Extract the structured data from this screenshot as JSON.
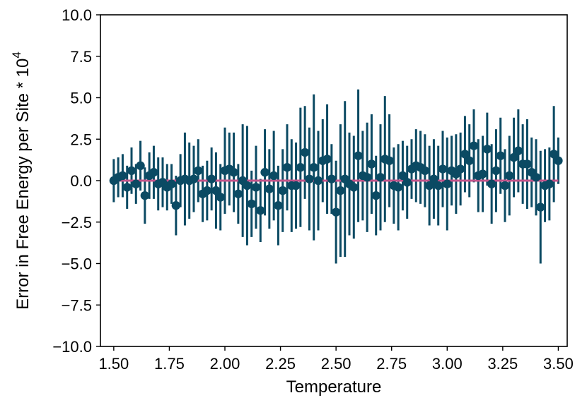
{
  "chart_data": {
    "type": "scatter",
    "xlabel": "Temperature",
    "ylabel_main": "Error in Free Energy per Site * 10",
    "ylabel_exponent": "4",
    "xlim": [
      1.44,
      3.54
    ],
    "ylim": [
      -10,
      10
    ],
    "xticks": [
      "1.50",
      "1.75",
      "2.00",
      "2.25",
      "2.50",
      "2.75",
      "3.00",
      "3.25",
      "3.50"
    ],
    "xtick_values": [
      1.5,
      1.75,
      2.0,
      2.25,
      2.5,
      2.75,
      3.0,
      3.25,
      3.5
    ],
    "yticks": [
      "10.0",
      "7.5",
      "5.0",
      "2.5",
      "0.0",
      "−2.5",
      "−5.0",
      "−7.5",
      "−10.0"
    ],
    "ytick_values": [
      10,
      7.5,
      5,
      2.5,
      0,
      -2.5,
      -5,
      -7.5,
      -10
    ],
    "grid": false,
    "colors": {
      "points": "#0b4a63",
      "reference_line": "#c2548a"
    },
    "reference_line": {
      "y": 0,
      "x_range": [
        1.5,
        3.5
      ]
    },
    "series": [
      {
        "x": [
          1.5,
          1.52,
          1.54,
          1.56,
          1.58,
          1.6,
          1.62,
          1.64,
          1.66,
          1.68,
          1.7,
          1.72,
          1.74,
          1.76,
          1.78,
          1.8,
          1.82,
          1.84,
          1.86,
          1.88,
          1.9,
          1.92,
          1.94,
          1.96,
          1.98,
          2.0,
          2.02,
          2.04,
          2.06,
          2.08,
          2.1,
          2.12,
          2.14,
          2.16,
          2.18,
          2.2,
          2.22,
          2.24,
          2.26,
          2.28,
          2.3,
          2.32,
          2.34,
          2.36,
          2.38,
          2.4,
          2.42,
          2.44,
          2.46,
          2.48,
          2.5,
          2.52,
          2.54,
          2.56,
          2.58,
          2.6,
          2.62,
          2.64,
          2.66,
          2.68,
          2.7,
          2.72,
          2.74,
          2.76,
          2.78,
          2.8,
          2.82,
          2.84,
          2.86,
          2.88,
          2.9,
          2.92,
          2.94,
          2.96,
          2.98,
          3.0,
          3.02,
          3.04,
          3.06,
          3.08,
          3.1,
          3.12,
          3.14,
          3.16,
          3.18,
          3.2,
          3.22,
          3.24,
          3.26,
          3.28,
          3.3,
          3.32,
          3.34,
          3.36,
          3.38,
          3.4,
          3.42,
          3.44,
          3.46,
          3.48,
          3.5
        ],
        "y": [
          0.0,
          0.2,
          0.3,
          -0.4,
          0.6,
          -0.2,
          0.9,
          -0.9,
          0.3,
          0.5,
          -0.2,
          -0.1,
          -0.4,
          -0.2,
          -1.5,
          0.0,
          0.1,
          0.0,
          0.1,
          0.6,
          -0.8,
          -0.6,
          0.1,
          -0.6,
          -1.0,
          0.6,
          0.7,
          0.5,
          -0.8,
          0.0,
          -0.3,
          -1.4,
          -0.4,
          -1.8,
          0.5,
          -0.5,
          0.3,
          -1.5,
          -0.6,
          0.8,
          -0.3,
          -0.3,
          0.8,
          1.7,
          0.1,
          0.8,
          0.0,
          1.2,
          1.3,
          0.1,
          -1.9,
          -0.6,
          0.1,
          -0.2,
          -0.4,
          1.5,
          0.3,
          0.2,
          1.0,
          -0.9,
          0.2,
          1.3,
          1.2,
          -0.3,
          -0.4,
          0.3,
          -0.1,
          0.7,
          0.9,
          0.8,
          0.6,
          -0.3,
          0.1,
          -0.3,
          0.7,
          -0.2,
          0.6,
          0.4,
          0.7,
          1.6,
          1.2,
          2.1,
          0.3,
          0.4,
          1.9,
          -0.2,
          0.6,
          1.5,
          -0.3,
          0.3,
          1.4,
          1.8,
          1.0,
          1.0,
          0.5,
          0.2,
          -1.6,
          -0.3,
          -0.2,
          1.6,
          1.2
        ],
        "error": [
          1.3,
          1.2,
          1.3,
          1.3,
          1.4,
          1.2,
          1.5,
          1.7,
          1.4,
          1.6,
          1.6,
          1.5,
          1.4,
          1.2,
          1.8,
          1.6,
          2.8,
          2.3,
          2.0,
          1.9,
          1.7,
          1.8,
          1.9,
          2.3,
          2.0,
          2.6,
          2.2,
          2.4,
          1.8,
          3.4,
          3.6,
          2.0,
          2.5,
          1.9,
          2.6,
          2.4,
          2.7,
          2.4,
          2.5,
          2.6,
          2.8,
          2.6,
          3.6,
          2.8,
          3.1,
          4.4,
          3.0,
          2.5,
          3.3,
          2.1,
          3.1,
          4.0,
          4.7,
          3.1,
          3.1,
          4.0,
          2.7,
          3.3,
          3.0,
          2.4,
          3.2,
          3.8,
          2.8,
          2.3,
          2.6,
          2.1,
          2.2,
          1.8,
          2.2,
          2.2,
          2.2,
          2.4,
          2.4,
          2.4,
          2.3,
          2.8,
          2.1,
          2.4,
          2.2,
          2.3,
          2.2,
          2.2,
          2.2,
          2.3,
          2.2,
          2.4,
          2.5,
          2.3,
          2.2,
          2.4,
          2.4,
          2.5,
          2.4,
          2.7,
          2.1,
          2.3,
          3.4,
          2.2,
          2.2,
          2.9,
          1.4
        ]
      }
    ]
  }
}
